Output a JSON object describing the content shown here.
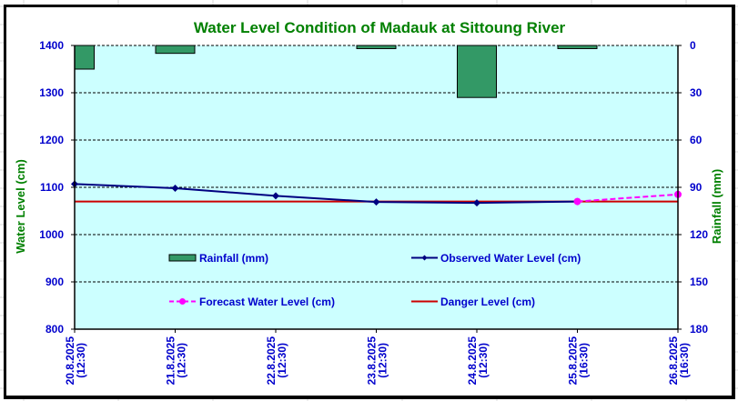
{
  "chart_data": {
    "type": "bar+line",
    "title": "Water Level Condition of Madauk at Sittoung River",
    "ylabel": "Water Level (cm)",
    "y2label": "Rainfall (mm)",
    "ylim": [
      800,
      1400
    ],
    "yticks": [
      800,
      900,
      1000,
      1100,
      1200,
      1300,
      1400
    ],
    "y2lim": [
      180,
      0
    ],
    "y2ticks": [
      0,
      30,
      60,
      90,
      120,
      150,
      180
    ],
    "y2_inverted": true,
    "grid": true,
    "categories": [
      [
        "20.8.2025",
        "(12:30)"
      ],
      [
        "21.8.2025",
        "(12:30)"
      ],
      [
        "22.8.2025",
        "(12:30)"
      ],
      [
        "23.8.2025",
        "(12:30)"
      ],
      [
        "24.8.2025",
        "(12:30)"
      ],
      [
        "25.8.2025",
        "(16:30)"
      ],
      [
        "26.8.2025",
        "(16:30)"
      ]
    ],
    "series": [
      {
        "name": "Rainfall (mm)",
        "type": "bar",
        "axis": "right",
        "color": "#339966",
        "values": [
          15,
          5,
          null,
          2,
          33,
          2,
          null
        ]
      },
      {
        "name": "Observed Water Level (cm)",
        "type": "line",
        "axis": "left",
        "color": "#000080",
        "marker": "diamond",
        "values": [
          1107,
          1098,
          1082,
          1069,
          1067,
          1070,
          null
        ]
      },
      {
        "name": "Forecast Water Level (cm)",
        "type": "line",
        "axis": "left",
        "color": "#ff00ff",
        "dashed": true,
        "marker": "circle",
        "values": [
          null,
          null,
          null,
          null,
          null,
          1070,
          1085
        ]
      },
      {
        "name": "Danger Level (cm)",
        "type": "line",
        "axis": "left",
        "color": "#cc0000",
        "values": [
          1070,
          1070,
          1070,
          1070,
          1070,
          1070,
          1070
        ]
      }
    ],
    "legend": "inside-plot",
    "colors": {
      "plot_background": "#ccffff",
      "tick_text": "#0000cc",
      "title_text": "#008000"
    }
  }
}
